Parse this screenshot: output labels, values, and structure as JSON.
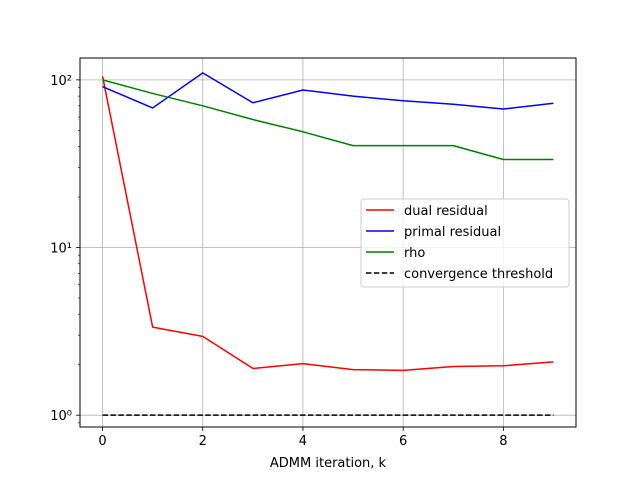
{
  "chart_data": {
    "type": "line",
    "title": "",
    "xlabel": "ADMM iteration, k",
    "ylabel": "",
    "yscale": "log",
    "xlim": [
      -0.45,
      9.45
    ],
    "ylim": [
      0.85,
      135
    ],
    "xticks": [
      0,
      2,
      4,
      6,
      8
    ],
    "xtick_labels": [
      "0",
      "2",
      "4",
      "6",
      "8"
    ],
    "yticks": [
      1,
      10,
      100
    ],
    "ytick_labels": [
      "10⁰",
      "10¹",
      "10²"
    ],
    "grid": true,
    "legend_position": "center-right",
    "x": [
      0,
      1,
      2,
      3,
      4,
      5,
      6,
      7,
      8,
      9
    ],
    "series": [
      {
        "name": "dual residual",
        "color": "#ff0000",
        "style": "solid",
        "values": [
          105,
          3.35,
          2.95,
          1.9,
          2.03,
          1.87,
          1.85,
          1.95,
          1.97,
          2.08
        ]
      },
      {
        "name": "primal residual",
        "color": "#0000ff",
        "style": "solid",
        "values": [
          91,
          68,
          110,
          73,
          87,
          80,
          75,
          71.5,
          67,
          72.5
        ]
      },
      {
        "name": "rho",
        "color": "#008000",
        "style": "solid",
        "values": [
          100,
          83,
          70,
          58,
          49,
          40.5,
          40.5,
          40.5,
          33.5,
          33.5
        ]
      },
      {
        "name": "convergence threshold",
        "color": "#000000",
        "style": "dashed",
        "values": [
          1,
          1,
          1,
          1,
          1,
          1,
          1,
          1,
          1,
          1
        ]
      }
    ]
  }
}
